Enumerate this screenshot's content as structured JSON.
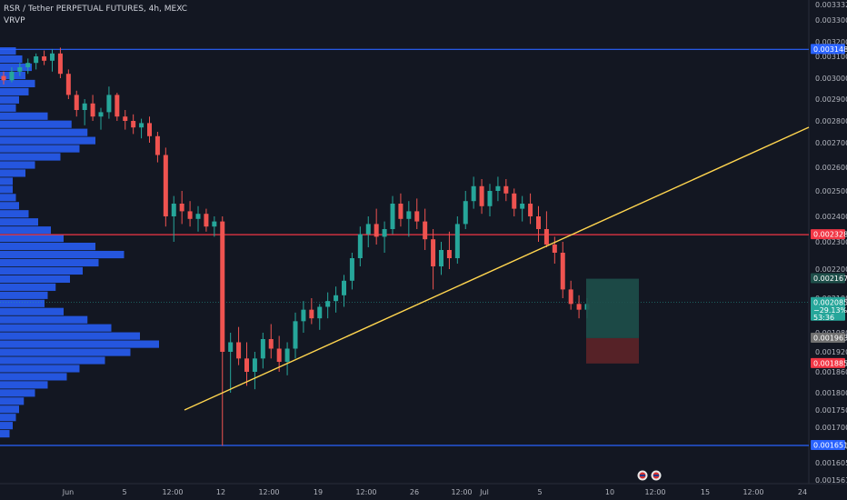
{
  "legend": {
    "title": "RSR / Tether PERPETUAL FUTURES, 4h, MEXC",
    "indicator": "VRVP"
  },
  "colors": {
    "background": "#131722",
    "up": "#26a69a",
    "down": "#ef5350",
    "volume": "#2962ff",
    "blue_line": "#2962ff",
    "red_line": "#f23645",
    "trend_line": "#ffd54f",
    "target_zone": "#1e4f4a",
    "stop_zone": "#5a2328"
  },
  "chart_data": {
    "type": "candlestick",
    "y_axis": {
      "ticks": [
        0.0033,
        0.0032,
        0.0031,
        0.003,
        0.0029,
        0.0028,
        0.0027,
        0.0026,
        0.0025,
        0.0024,
        0.0023,
        0.0022,
        0.0021,
        0.00198,
        0.00192,
        0.00186,
        0.0018,
        0.00175,
        0.0017,
        0.00165,
        0.0016,
        0.00156
      ],
      "tick_labels": [
        "0.003300",
        "0.003200",
        "0.003100",
        "0.003000",
        "0.002900",
        "0.002800",
        "0.002700",
        "0.002600",
        "0.002500",
        "0.002400",
        "0.002300",
        "0.002200",
        "0.002100",
        "0.001980",
        "0.001920",
        "0.001860",
        "0.001800",
        "0.001750",
        "0.001700",
        "0.001651",
        "0.001605",
        "0.001561"
      ],
      "top_label": "0.0033320"
    },
    "x_axis": {
      "labels": [
        "Jun",
        "5",
        "12:00",
        "12",
        "12:00",
        "19",
        "12:00",
        "26",
        "12:00",
        "Jul",
        "5",
        "10",
        "12:00",
        "15",
        "12:00",
        "24"
      ]
    },
    "price_tags": [
      {
        "label": "0.003148",
        "price": 0.003148,
        "color": "#2962ff"
      },
      {
        "label": "0.002328",
        "price": 0.002328,
        "color": "#f23645"
      },
      {
        "label": "0.002167",
        "price": 0.002167,
        "color": "#1e4f4a"
      },
      {
        "label": "0.002085",
        "sub1": "−29.13%",
        "sub2": "53:36",
        "price": 0.002085,
        "color": "#26a69a"
      },
      {
        "label": "0.001963",
        "price": 0.001963,
        "color": "#707070"
      },
      {
        "label": "0.001885",
        "price": 0.001885,
        "color": "#f23645"
      },
      {
        "label": "0.001651",
        "price": 0.001651,
        "color": "#2962ff"
      }
    ],
    "horizontal_lines": [
      {
        "price": 0.003148,
        "color": "#2962ff"
      },
      {
        "price": 0.002328,
        "color": "#f23645"
      },
      {
        "price": 0.001651,
        "color": "#2962ff"
      }
    ],
    "trend_line": {
      "from": {
        "x_index": 0,
        "price": 0.00175
      },
      "to": {
        "x_index": 1,
        "price": 0.00278
      }
    },
    "candles": [
      [
        0.00301,
        0.00303,
        0.00297,
        0.00299
      ],
      [
        0.00299,
        0.00305,
        0.00298,
        0.00303
      ],
      [
        0.00303,
        0.00307,
        0.00301,
        0.00305
      ],
      [
        0.00305,
        0.00309,
        0.00302,
        0.00307
      ],
      [
        0.00307,
        0.00312,
        0.00304,
        0.0031
      ],
      [
        0.0031,
        0.00314,
        0.00306,
        0.00308
      ],
      [
        0.00308,
        0.00315,
        0.00303,
        0.00312
      ],
      [
        0.00312,
        0.00316,
        0.003,
        0.00302
      ],
      [
        0.00302,
        0.00304,
        0.0029,
        0.00292
      ],
      [
        0.00292,
        0.00294,
        0.00282,
        0.00285
      ],
      [
        0.00285,
        0.0029,
        0.00278,
        0.00288
      ],
      [
        0.00288,
        0.00292,
        0.0028,
        0.00282
      ],
      [
        0.00282,
        0.00286,
        0.00276,
        0.00284
      ],
      [
        0.00284,
        0.00296,
        0.00281,
        0.00292
      ],
      [
        0.00292,
        0.00293,
        0.0028,
        0.00282
      ],
      [
        0.00282,
        0.00285,
        0.00276,
        0.0028
      ],
      [
        0.0028,
        0.00283,
        0.00274,
        0.00277
      ],
      [
        0.00277,
        0.00281,
        0.00272,
        0.00279
      ],
      [
        0.00279,
        0.00282,
        0.0027,
        0.00273
      ],
      [
        0.00273,
        0.00275,
        0.00262,
        0.00265
      ],
      [
        0.00265,
        0.00268,
        0.00236,
        0.0024
      ],
      [
        0.0024,
        0.00248,
        0.0023,
        0.00245
      ],
      [
        0.00245,
        0.0025,
        0.00237,
        0.00242
      ],
      [
        0.00242,
        0.00246,
        0.00236,
        0.00239
      ],
      [
        0.00239,
        0.00244,
        0.00234,
        0.00241
      ],
      [
        0.00241,
        0.00243,
        0.00234,
        0.00236
      ],
      [
        0.00236,
        0.0024,
        0.00232,
        0.00238
      ],
      [
        0.00238,
        0.0024,
        0.00165,
        0.00192
      ],
      [
        0.00192,
        0.00198,
        0.0018,
        0.00195
      ],
      [
        0.00195,
        0.002,
        0.00188,
        0.0019
      ],
      [
        0.0019,
        0.00195,
        0.00182,
        0.00186
      ],
      [
        0.00186,
        0.00192,
        0.00181,
        0.0019
      ],
      [
        0.0019,
        0.00198,
        0.00187,
        0.00196
      ],
      [
        0.00196,
        0.00201,
        0.0019,
        0.00193
      ],
      [
        0.00193,
        0.00197,
        0.00186,
        0.00189
      ],
      [
        0.00189,
        0.00195,
        0.00185,
        0.00193
      ],
      [
        0.00193,
        0.00205,
        0.0019,
        0.00202
      ],
      [
        0.00202,
        0.00209,
        0.00198,
        0.00206
      ],
      [
        0.00206,
        0.0021,
        0.00201,
        0.00203
      ],
      [
        0.00203,
        0.00208,
        0.00199,
        0.00207
      ],
      [
        0.00207,
        0.00212,
        0.00203,
        0.00209
      ],
      [
        0.00209,
        0.00214,
        0.00205,
        0.00211
      ],
      [
        0.00211,
        0.00218,
        0.00207,
        0.00216
      ],
      [
        0.00216,
        0.00226,
        0.00213,
        0.00224
      ],
      [
        0.00224,
        0.00236,
        0.00221,
        0.00233
      ],
      [
        0.00233,
        0.0024,
        0.00228,
        0.00237
      ],
      [
        0.00237,
        0.00243,
        0.00229,
        0.00232
      ],
      [
        0.00232,
        0.00238,
        0.00226,
        0.00235
      ],
      [
        0.00235,
        0.00248,
        0.00233,
        0.00245
      ],
      [
        0.00245,
        0.00249,
        0.00236,
        0.00239
      ],
      [
        0.00239,
        0.00246,
        0.00232,
        0.00242
      ],
      [
        0.00242,
        0.00247,
        0.00235,
        0.00238
      ],
      [
        0.00238,
        0.00243,
        0.00227,
        0.00231
      ],
      [
        0.00231,
        0.00235,
        0.00213,
        0.00221
      ],
      [
        0.00221,
        0.0023,
        0.00218,
        0.00227
      ],
      [
        0.00227,
        0.00234,
        0.0022,
        0.00224
      ],
      [
        0.00224,
        0.0024,
        0.00222,
        0.00237
      ],
      [
        0.00237,
        0.0025,
        0.00235,
        0.00246
      ],
      [
        0.00246,
        0.00256,
        0.00243,
        0.00252
      ],
      [
        0.00252,
        0.00255,
        0.00241,
        0.00244
      ],
      [
        0.00244,
        0.00253,
        0.0024,
        0.0025
      ],
      [
        0.0025,
        0.00256,
        0.00246,
        0.00252
      ],
      [
        0.00252,
        0.00255,
        0.00246,
        0.00249
      ],
      [
        0.00249,
        0.00251,
        0.0024,
        0.00243
      ],
      [
        0.00243,
        0.00248,
        0.00238,
        0.00245
      ],
      [
        0.00245,
        0.00249,
        0.00237,
        0.0024
      ],
      [
        0.0024,
        0.00244,
        0.0023,
        0.00235
      ],
      [
        0.00235,
        0.00242,
        0.00228,
        0.00229
      ],
      [
        0.00229,
        0.00232,
        0.00222,
        0.00226
      ],
      [
        0.00226,
        0.0023,
        0.0021,
        0.00213
      ],
      [
        0.00213,
        0.00216,
        0.00206,
        0.00208
      ],
      [
        0.00208,
        0.00211,
        0.00203,
        0.00206
      ],
      [
        0.00206,
        0.0021,
        0.00203,
        0.00208
      ]
    ],
    "volume_profile": [
      0.1,
      0.14,
      0.2,
      0.16,
      0.22,
      0.18,
      0.12,
      0.1,
      0.3,
      0.45,
      0.55,
      0.6,
      0.5,
      0.38,
      0.22,
      0.16,
      0.08,
      0.08,
      0.1,
      0.12,
      0.18,
      0.24,
      0.32,
      0.4,
      0.6,
      0.78,
      0.62,
      0.52,
      0.44,
      0.35,
      0.3,
      0.28,
      0.4,
      0.55,
      0.7,
      0.88,
      1.0,
      0.82,
      0.66,
      0.5,
      0.42,
      0.3,
      0.22,
      0.15,
      0.12,
      0.1,
      0.08,
      0.06
    ],
    "position": {
      "entry": 0.002085,
      "target": 0.002167,
      "stop": 0.001885,
      "mid": 0.001963
    }
  }
}
